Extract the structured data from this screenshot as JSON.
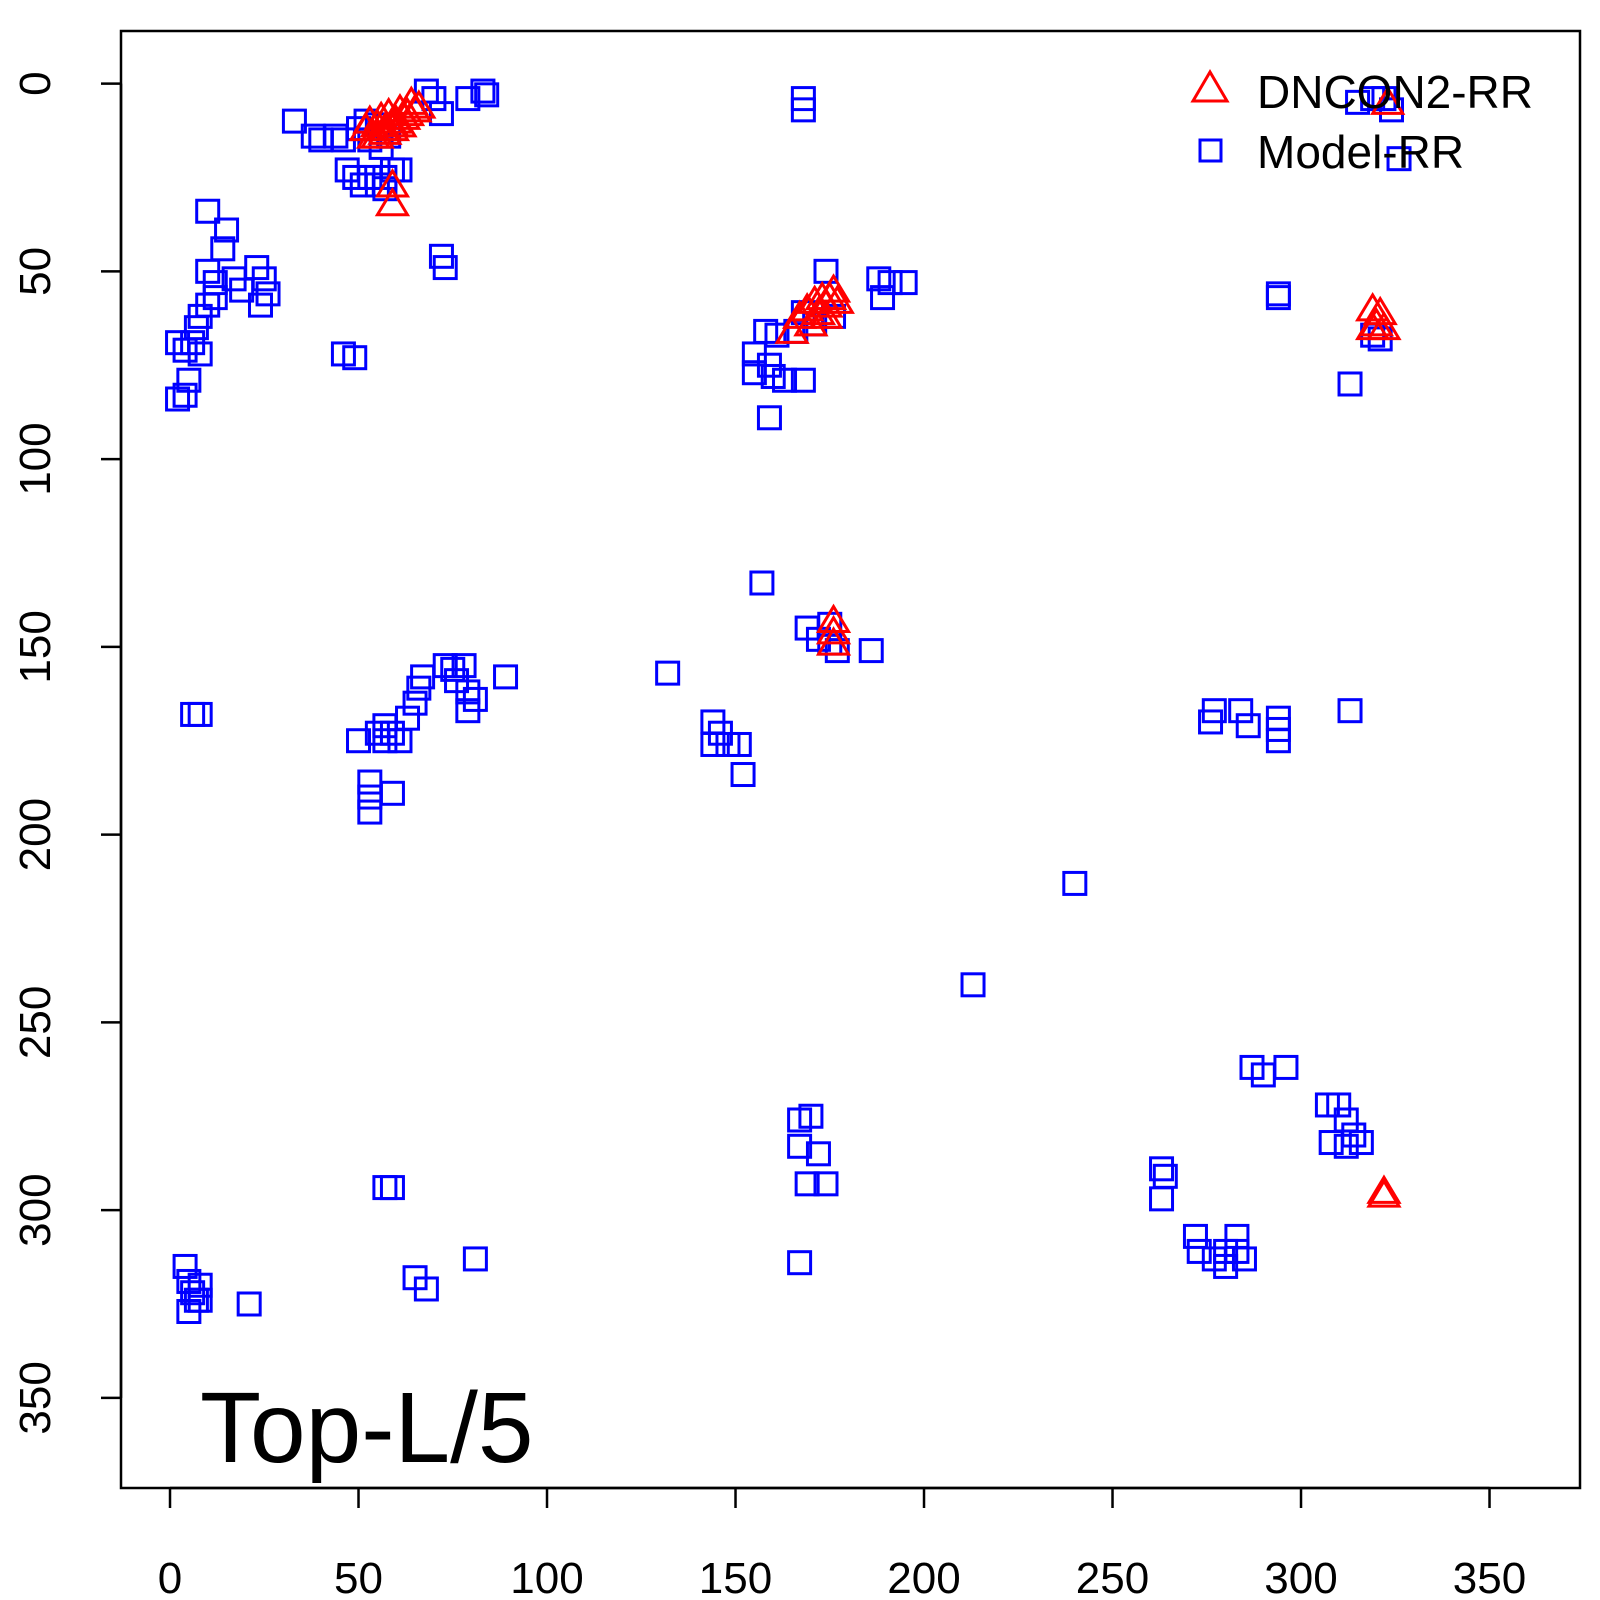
{
  "chart_data": {
    "type": "scatter",
    "title": "",
    "xlabel": "",
    "ylabel": "",
    "annotation": "Top-L/5",
    "xlim": [
      -13,
      374
    ],
    "ylim": [
      -14,
      374
    ],
    "y_reversed": true,
    "x_ticks": [
      "0",
      "50",
      "100",
      "150",
      "200",
      "250",
      "300",
      "350"
    ],
    "y_ticks": [
      "0",
      "50",
      "100",
      "150",
      "200",
      "250",
      "300",
      "350"
    ],
    "legend_position": "top-right",
    "grid": false,
    "series": [
      {
        "name": "Model-RR",
        "marker": "square",
        "color": "#0000ff",
        "points": [
          [
            33,
            10
          ],
          [
            38,
            14
          ],
          [
            40,
            15
          ],
          [
            44,
            14
          ],
          [
            46,
            15
          ],
          [
            50,
            12
          ],
          [
            52,
            10
          ],
          [
            55,
            11
          ],
          [
            53,
            15
          ],
          [
            56,
            17
          ],
          [
            58,
            14
          ],
          [
            47,
            23
          ],
          [
            49,
            25
          ],
          [
            51,
            27
          ],
          [
            53,
            25
          ],
          [
            55,
            27
          ],
          [
            57,
            25
          ],
          [
            59,
            23
          ],
          [
            61,
            23
          ],
          [
            57,
            28
          ],
          [
            68,
            2
          ],
          [
            70,
            4
          ],
          [
            72,
            8
          ],
          [
            79,
            4
          ],
          [
            83,
            2
          ],
          [
            84,
            3
          ],
          [
            72,
            46
          ],
          [
            73,
            49
          ],
          [
            10,
            34
          ],
          [
            15,
            39
          ],
          [
            14,
            44
          ],
          [
            10,
            50
          ],
          [
            12,
            53
          ],
          [
            17,
            52
          ],
          [
            19,
            55
          ],
          [
            23,
            49
          ],
          [
            25,
            52
          ],
          [
            26,
            56
          ],
          [
            24,
            59
          ],
          [
            12,
            57
          ],
          [
            10,
            59
          ],
          [
            8,
            62
          ],
          [
            7,
            65
          ],
          [
            6,
            69
          ],
          [
            4,
            71
          ],
          [
            2,
            69
          ],
          [
            8,
            72
          ],
          [
            5,
            79
          ],
          [
            2,
            84
          ],
          [
            4,
            83
          ],
          [
            46,
            72
          ],
          [
            49,
            73
          ],
          [
            168,
            4
          ],
          [
            168,
            7
          ],
          [
            174,
            50
          ],
          [
            176,
            62
          ],
          [
            171,
            64
          ],
          [
            168,
            61
          ],
          [
            166,
            66
          ],
          [
            158,
            66
          ],
          [
            161,
            67
          ],
          [
            155,
            72
          ],
          [
            159,
            75
          ],
          [
            155,
            77
          ],
          [
            160,
            78
          ],
          [
            163,
            79
          ],
          [
            168,
            79
          ],
          [
            159,
            89
          ],
          [
            188,
            52
          ],
          [
            191,
            53
          ],
          [
            195,
            53
          ],
          [
            189,
            57
          ],
          [
            294,
            56
          ],
          [
            294,
            57
          ],
          [
            313,
            80
          ],
          [
            315,
            5
          ],
          [
            319,
            4
          ],
          [
            322,
            4
          ],
          [
            324,
            7
          ],
          [
            326,
            20
          ],
          [
            319,
            67
          ],
          [
            321,
            68
          ],
          [
            157,
            133
          ],
          [
            132,
            157
          ],
          [
            169,
            145
          ],
          [
            172,
            148
          ],
          [
            175,
            149
          ],
          [
            177,
            151
          ],
          [
            175,
            144
          ],
          [
            186,
            151
          ],
          [
            144,
            170
          ],
          [
            144,
            176
          ],
          [
            146,
            173
          ],
          [
            148,
            176
          ],
          [
            151,
            176
          ],
          [
            152,
            184
          ],
          [
            6,
            168
          ],
          [
            8,
            168
          ],
          [
            50,
            175
          ],
          [
            55,
            173
          ],
          [
            57,
            171
          ],
          [
            59,
            173
          ],
          [
            61,
            175
          ],
          [
            63,
            169
          ],
          [
            65,
            165
          ],
          [
            66,
            161
          ],
          [
            67,
            158
          ],
          [
            57,
            175
          ],
          [
            73,
            155
          ],
          [
            75,
            156
          ],
          [
            78,
            155
          ],
          [
            76,
            159
          ],
          [
            79,
            162
          ],
          [
            81,
            164
          ],
          [
            79,
            167
          ],
          [
            89,
            158
          ],
          [
            53,
            186
          ],
          [
            53,
            190
          ],
          [
            53,
            194
          ],
          [
            59,
            189
          ],
          [
            277,
            167
          ],
          [
            284,
            167
          ],
          [
            276,
            170
          ],
          [
            286,
            171
          ],
          [
            294,
            169
          ],
          [
            294,
            172
          ],
          [
            294,
            175
          ],
          [
            313,
            167
          ],
          [
            240,
            213
          ],
          [
            213,
            240
          ],
          [
            287,
            262
          ],
          [
            290,
            264
          ],
          [
            296,
            262
          ],
          [
            167,
            276
          ],
          [
            170,
            275
          ],
          [
            167,
            283
          ],
          [
            172,
            285
          ],
          [
            169,
            293
          ],
          [
            174,
            293
          ],
          [
            167,
            314
          ],
          [
            307,
            272
          ],
          [
            310,
            272
          ],
          [
            312,
            276
          ],
          [
            314,
            280
          ],
          [
            312,
            283
          ],
          [
            308,
            282
          ],
          [
            316,
            282
          ],
          [
            263,
            289
          ],
          [
            263,
            297
          ],
          [
            264,
            291
          ],
          [
            272,
            307
          ],
          [
            273,
            311
          ],
          [
            277,
            313
          ],
          [
            280,
            315
          ],
          [
            283,
            311
          ],
          [
            283,
            307
          ],
          [
            280,
            311
          ],
          [
            285,
            313
          ],
          [
            4,
            315
          ],
          [
            5,
            319
          ],
          [
            6,
            322
          ],
          [
            7,
            324
          ],
          [
            8,
            320
          ],
          [
            5,
            327
          ],
          [
            8,
            324
          ],
          [
            21,
            325
          ],
          [
            57,
            294
          ],
          [
            59,
            294
          ],
          [
            65,
            318
          ],
          [
            68,
            321
          ],
          [
            81,
            313
          ]
        ]
      },
      {
        "name": "DNCON2-RR",
        "marker": "triangle",
        "color": "#ff0000",
        "points": [
          [
            52,
            12
          ],
          [
            53,
            10
          ],
          [
            54,
            14
          ],
          [
            55,
            11
          ],
          [
            56,
            9
          ],
          [
            57,
            12
          ],
          [
            58,
            8
          ],
          [
            59,
            11
          ],
          [
            60,
            10
          ],
          [
            61,
            7
          ],
          [
            62,
            9
          ],
          [
            63,
            8
          ],
          [
            64,
            5
          ],
          [
            65,
            7
          ],
          [
            66,
            6
          ],
          [
            55,
            14
          ],
          [
            57,
            13
          ],
          [
            59,
            12
          ],
          [
            61,
            11
          ],
          [
            59,
            27
          ],
          [
            59,
            32
          ],
          [
            165,
            66
          ],
          [
            167,
            62
          ],
          [
            169,
            60
          ],
          [
            170,
            64
          ],
          [
            171,
            58
          ],
          [
            172,
            61
          ],
          [
            173,
            57
          ],
          [
            174,
            59
          ],
          [
            175,
            57
          ],
          [
            176,
            55
          ],
          [
            177,
            58
          ],
          [
            174,
            62
          ],
          [
            319,
            60
          ],
          [
            321,
            61
          ],
          [
            322,
            65
          ],
          [
            319,
            65
          ],
          [
            320,
            64
          ],
          [
            323,
            5
          ],
          [
            176,
            143
          ],
          [
            176,
            146
          ],
          [
            176,
            149
          ],
          [
            322,
            295
          ],
          [
            322,
            296
          ]
        ]
      }
    ]
  }
}
